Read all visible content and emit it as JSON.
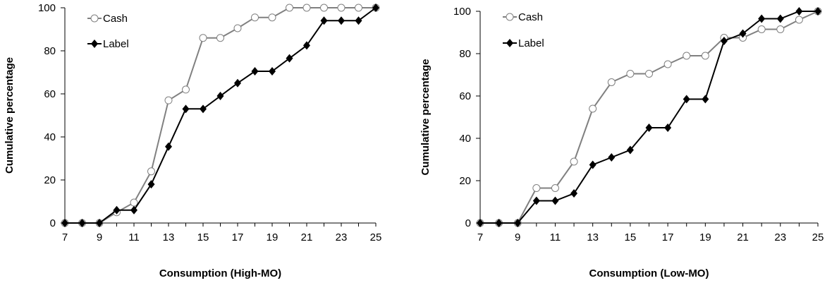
{
  "chart_data": [
    {
      "type": "line",
      "title": "",
      "xlabel": "Consumption (High-MO)",
      "ylabel": "Cumulative percentage",
      "xlim": [
        7,
        25
      ],
      "ylim": [
        0,
        100
      ],
      "xticks": [
        7,
        9,
        11,
        13,
        15,
        17,
        19,
        21,
        23,
        25
      ],
      "yticks": [
        0,
        20,
        40,
        60,
        80,
        100
      ],
      "grid": false,
      "legend_position": "top-left",
      "x": [
        7,
        8,
        9,
        10,
        11,
        12,
        13,
        14,
        15,
        16,
        17,
        18,
        19,
        20,
        21,
        22,
        23,
        24,
        25
      ],
      "series": [
        {
          "name": "Cash",
          "marker": "open-circle",
          "color": "#808080",
          "values": [
            0,
            0,
            0,
            5,
            9.5,
            24,
            57,
            62,
            86,
            86,
            90.5,
            95.5,
            95.5,
            100,
            100,
            100,
            100,
            100,
            100
          ]
        },
        {
          "name": "Label",
          "marker": "filled-diamond",
          "color": "#000000",
          "values": [
            0,
            0,
            0,
            6,
            6,
            18,
            35.5,
            53,
            53,
            59,
            65,
            70.5,
            70.5,
            76.5,
            82.5,
            94,
            94,
            94,
            100
          ]
        }
      ]
    },
    {
      "type": "line",
      "title": "",
      "xlabel": "Consumption (Low-MO)",
      "ylabel": "Cumulative percentage",
      "xlim": [
        7,
        25
      ],
      "ylim": [
        0,
        100
      ],
      "xticks": [
        7,
        9,
        11,
        13,
        15,
        17,
        19,
        21,
        23,
        25
      ],
      "yticks": [
        0,
        20,
        40,
        60,
        80,
        100
      ],
      "grid": false,
      "legend_position": "top-left",
      "x": [
        7,
        8,
        9,
        10,
        11,
        12,
        13,
        14,
        15,
        16,
        17,
        18,
        19,
        20,
        21,
        22,
        23,
        24,
        25
      ],
      "series": [
        {
          "name": "Cash",
          "marker": "open-circle",
          "color": "#808080",
          "values": [
            0,
            0,
            0,
            16.5,
            16.5,
            29,
            54,
            66.5,
            70.5,
            70.5,
            75,
            79,
            79,
            87.5,
            87.5,
            91.5,
            91.5,
            96,
            100
          ]
        },
        {
          "name": "Label",
          "marker": "filled-diamond",
          "color": "#000000",
          "values": [
            0,
            0,
            0,
            10.5,
            10.5,
            14,
            27.5,
            31,
            34.5,
            45,
            45,
            58.5,
            58.5,
            86,
            89.5,
            96.5,
            96.5,
            100,
            100
          ]
        }
      ]
    }
  ]
}
